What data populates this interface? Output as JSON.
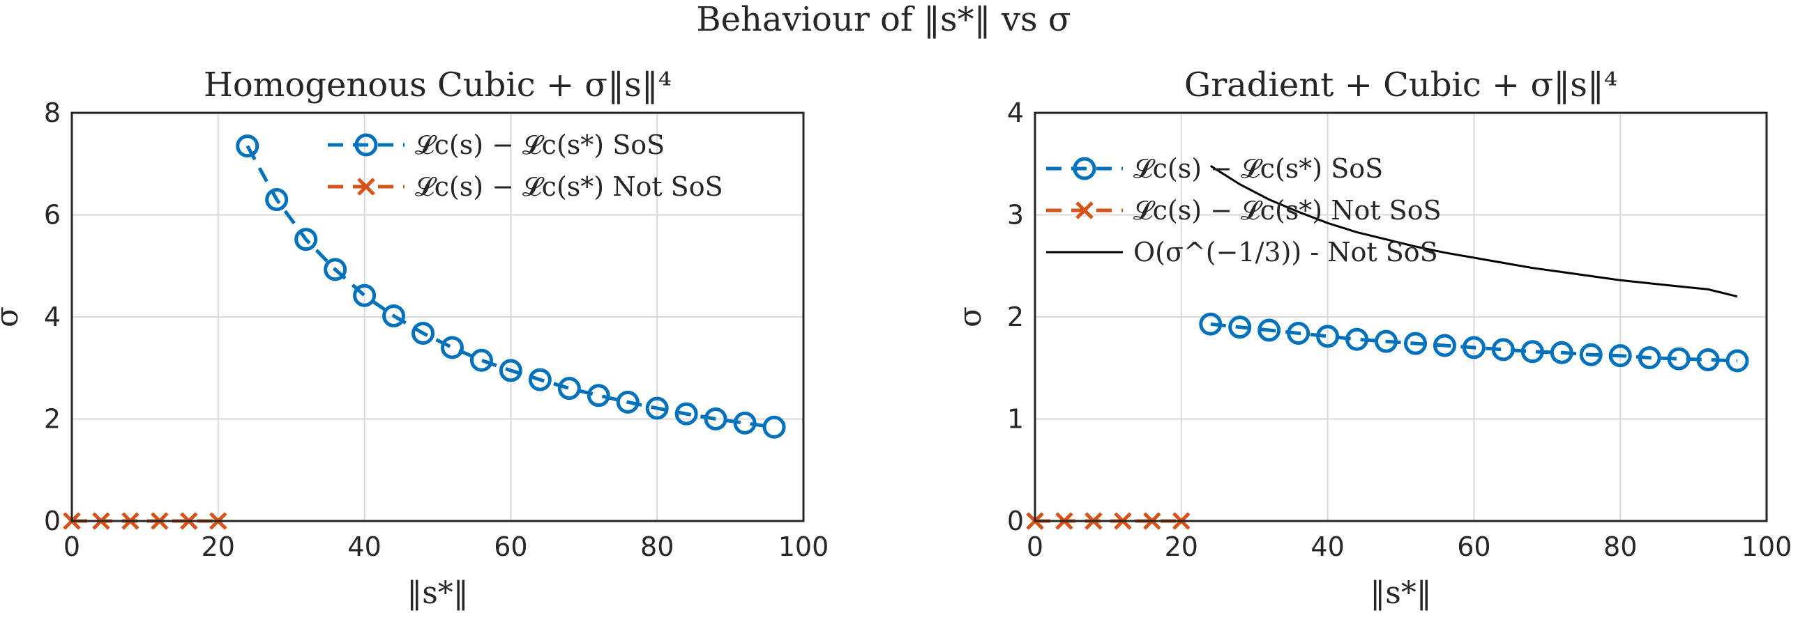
{
  "figure_title": "Behaviour of ‖s*‖ vs σ",
  "colors": {
    "sos": "#0072BD",
    "not_sos": "#D95319",
    "bound": "#000000",
    "axes": "#262626",
    "grid": "#d9d9d9"
  },
  "chart_data": [
    {
      "type": "line",
      "title": "Homogenous Cubic + σ‖s‖⁴",
      "xlabel": "‖s*‖",
      "ylabel": "σ",
      "xlim": [
        0,
        100
      ],
      "ylim": [
        0,
        8
      ],
      "xticks": [
        0,
        20,
        40,
        60,
        80,
        100
      ],
      "yticks": [
        0,
        2,
        4,
        6,
        8
      ],
      "grid": true,
      "legend_position": "top-right",
      "series": [
        {
          "name": "𝓛c(s) − 𝓛c(s*) SoS",
          "style": "dashed-circle",
          "color": "#0072BD",
          "x": [
            24,
            28,
            32,
            36,
            40,
            44,
            48,
            52,
            56,
            60,
            64,
            68,
            72,
            76,
            80,
            84,
            88,
            92,
            96
          ],
          "y": [
            7.35,
            6.3,
            5.52,
            4.93,
            4.42,
            4.02,
            3.68,
            3.4,
            3.15,
            2.95,
            2.77,
            2.6,
            2.46,
            2.33,
            2.21,
            2.1,
            2.0,
            1.92,
            1.84
          ]
        },
        {
          "name": "𝓛c(s) − 𝓛c(s*) Not SoS",
          "style": "dashed-cross",
          "color": "#D95319",
          "x": [
            0,
            4,
            8,
            12,
            16,
            20
          ],
          "y": [
            0,
            0,
            0,
            0,
            0,
            0
          ]
        }
      ]
    },
    {
      "type": "line",
      "title": "Gradient + Cubic + σ‖s‖⁴",
      "xlabel": "‖s*‖",
      "ylabel": "σ",
      "xlim": [
        0,
        100
      ],
      "ylim": [
        0,
        4
      ],
      "xticks": [
        0,
        20,
        40,
        60,
        80,
        100
      ],
      "yticks": [
        0,
        1,
        2,
        3,
        4
      ],
      "grid": true,
      "legend_position": "top-left",
      "series": [
        {
          "name": "𝓛c(s) − 𝓛c(s*) SoS",
          "style": "dashed-circle",
          "color": "#0072BD",
          "x": [
            24,
            28,
            32,
            36,
            40,
            44,
            48,
            52,
            56,
            60,
            64,
            68,
            72,
            76,
            80,
            84,
            88,
            92,
            96
          ],
          "y": [
            1.93,
            1.9,
            1.87,
            1.84,
            1.81,
            1.78,
            1.76,
            1.74,
            1.72,
            1.7,
            1.68,
            1.66,
            1.65,
            1.63,
            1.62,
            1.6,
            1.59,
            1.58,
            1.57
          ]
        },
        {
          "name": "𝓛c(s) − 𝓛c(s*) Not SoS",
          "style": "dashed-cross",
          "color": "#D95319",
          "x": [
            0,
            4,
            8,
            12,
            16,
            20
          ],
          "y": [
            0,
            0,
            0,
            0,
            0,
            0
          ]
        },
        {
          "name": "O(σ^(−1/3)) - Not SoS",
          "style": "solid",
          "color": "#000000",
          "x": [
            24,
            28,
            32,
            36,
            40,
            44,
            48,
            52,
            56,
            60,
            64,
            68,
            72,
            76,
            80,
            84,
            88,
            92,
            96
          ],
          "y": [
            3.48,
            3.3,
            3.15,
            3.03,
            2.92,
            2.83,
            2.76,
            2.69,
            2.63,
            2.58,
            2.53,
            2.48,
            2.44,
            2.4,
            2.36,
            2.33,
            2.3,
            2.27,
            2.2
          ]
        }
      ]
    }
  ]
}
